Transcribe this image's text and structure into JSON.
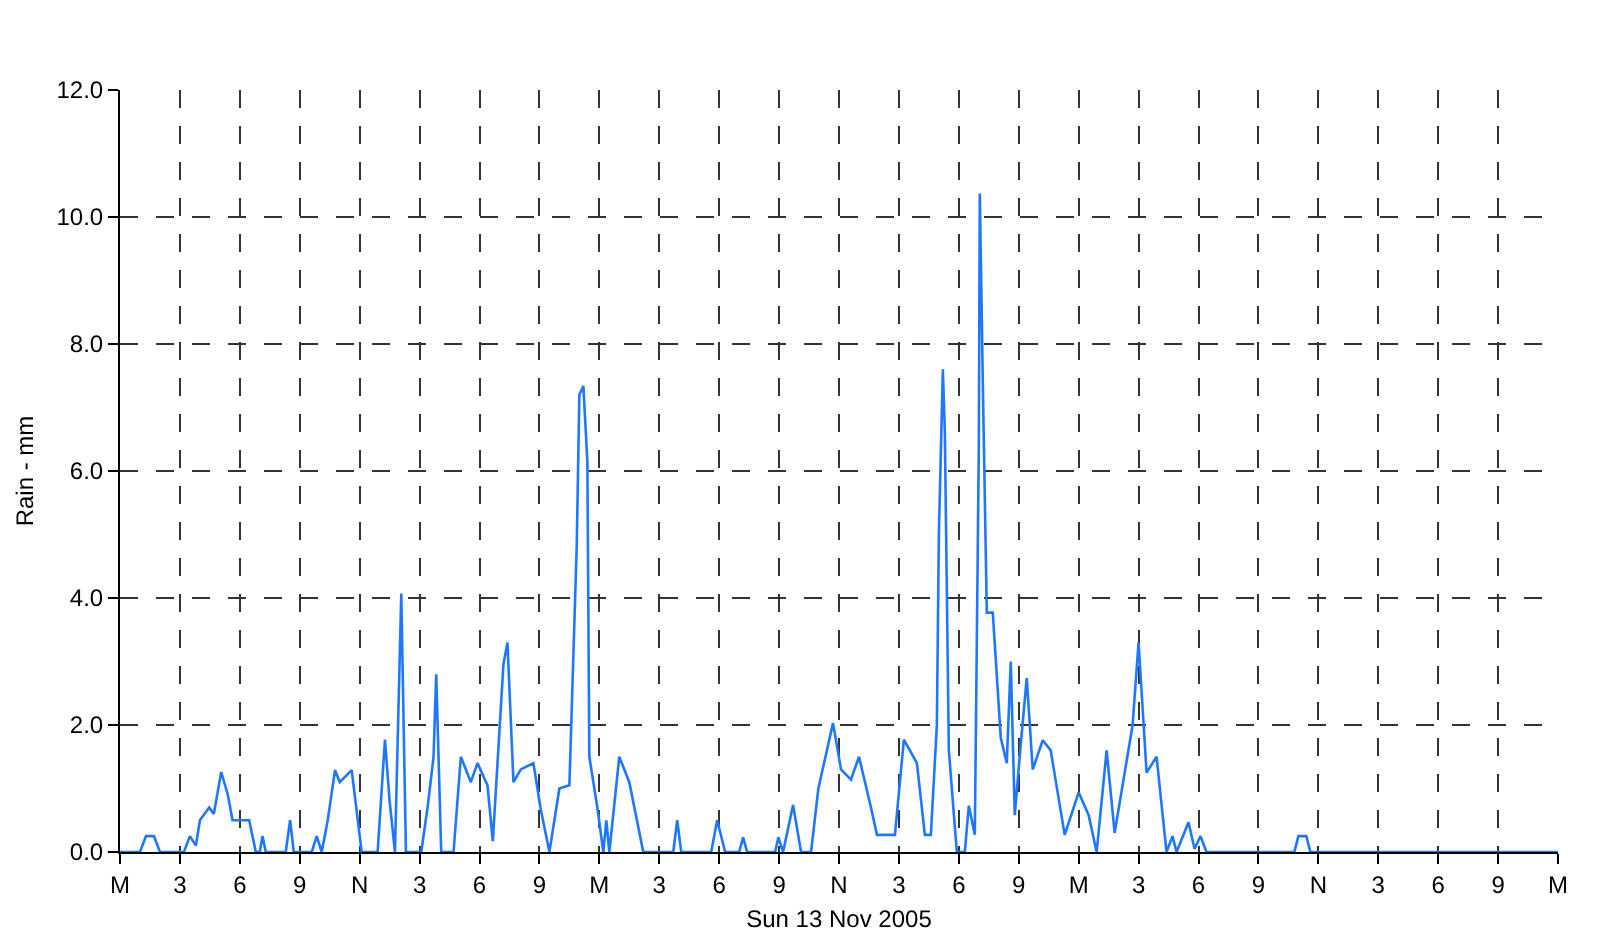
{
  "chart_data": {
    "type": "line",
    "xlabel": "Sun 13 Nov 2005",
    "ylabel": "Rain - mm",
    "x": [
      "2005-11-13T00:00",
      "2005-11-13T01:00",
      "2005-11-13T01:18",
      "2005-11-13T01:42",
      "2005-11-13T02:00",
      "2005-11-13T03:12",
      "2005-11-13T03:30",
      "2005-11-13T03:48",
      "2005-11-13T04:00",
      "2005-11-13T04:28",
      "2005-11-13T04:42",
      "2005-11-13T05:04",
      "2005-11-13T05:24",
      "2005-11-13T05:38",
      "2005-11-13T06:28",
      "2005-11-13T06:48",
      "2005-11-13T07:00",
      "2005-11-13T07:08",
      "2005-11-13T07:18",
      "2005-11-13T08:18",
      "2005-11-13T08:31",
      "2005-11-13T08:42",
      "2005-11-13T09:36",
      "2005-11-13T09:51",
      "2005-11-13T10:06",
      "2005-11-13T10:24",
      "2005-11-13T10:46",
      "2005-11-13T11:00",
      "2005-11-13T11:36",
      "2005-11-13T12:06",
      "2005-11-13T12:54",
      "2005-11-13T13:16",
      "2005-11-13T13:30",
      "2005-11-13T13:46",
      "2005-11-13T14:00",
      "2005-11-13T14:05",
      "2005-11-13T14:19",
      "2005-11-13T15:05",
      "2005-11-13T15:25",
      "2005-11-13T15:42",
      "2005-11-13T15:50",
      "2005-11-13T16:05",
      "2005-11-13T16:42",
      "2005-11-13T17:04",
      "2005-11-13T17:34",
      "2005-11-13T17:54",
      "2005-11-13T18:24",
      "2005-11-13T18:40",
      "2005-11-13T19:12",
      "2005-11-13T19:24",
      "2005-11-13T19:42",
      "2005-11-13T20:04",
      "2005-11-13T20:42",
      "2005-11-13T21:03",
      "2005-11-13T21:30",
      "2005-11-13T22:00",
      "2005-11-13T22:30",
      "2005-11-13T22:52",
      "2005-11-13T23:00",
      "2005-11-13T23:12",
      "2005-11-13T23:24",
      "2005-11-13T23:30",
      "2005-11-13T23:54",
      "2005-11-14T00:12",
      "2005-11-14T00:21",
      "2005-11-14T00:30",
      "2005-11-14T01:00",
      "2005-11-14T01:30",
      "2005-11-14T02:12",
      "2005-11-14T03:42",
      "2005-11-14T03:54",
      "2005-11-14T04:06",
      "2005-11-14T05:36",
      "2005-11-14T05:54",
      "2005-11-14T06:18",
      "2005-11-14T07:00",
      "2005-11-14T07:12",
      "2005-11-14T07:24",
      "2005-11-14T08:48",
      "2005-11-14T08:58",
      "2005-11-14T09:12",
      "2005-11-14T09:42",
      "2005-11-14T10:06",
      "2005-11-14T10:36",
      "2005-11-14T10:58",
      "2005-11-14T11:42",
      "2005-11-14T12:06",
      "2005-11-14T12:36",
      "2005-11-14T13:00",
      "2005-11-14T13:36",
      "2005-11-14T13:54",
      "2005-11-14T14:48",
      "2005-11-14T15:15",
      "2005-11-14T15:54",
      "2005-11-14T16:18",
      "2005-11-14T16:36",
      "2005-11-14T16:54",
      "2005-11-14T17:00",
      "2005-11-14T17:12",
      "2005-11-14T17:18",
      "2005-11-14T17:30",
      "2005-11-14T17:54",
      "2005-11-14T18:18",
      "2005-11-14T18:30",
      "2005-11-14T18:48",
      "2005-11-14T19:00",
      "2005-11-14T19:03",
      "2005-11-14T19:12",
      "2005-11-14T19:24",
      "2005-11-14T19:42",
      "2005-11-14T20:06",
      "2005-11-14T20:24",
      "2005-11-14T20:36",
      "2005-11-14T20:48",
      "2005-11-14T21:06",
      "2005-11-14T21:24",
      "2005-11-14T21:42",
      "2005-11-14T22:12",
      "2005-11-14T22:36",
      "2005-11-14T23:18",
      "2005-11-15T00:00",
      "2005-11-15T00:30",
      "2005-11-15T00:54",
      "2005-11-15T01:24",
      "2005-11-15T01:48",
      "2005-11-15T02:42",
      "2005-11-15T03:00",
      "2005-11-15T03:24",
      "2005-11-15T03:54",
      "2005-11-15T04:24",
      "2005-11-15T04:42",
      "2005-11-15T04:54",
      "2005-11-15T05:30",
      "2005-11-15T05:48",
      "2005-11-15T06:06",
      "2005-11-15T06:24",
      "2005-11-15T10:48",
      "2005-11-15T11:00",
      "2005-11-15T11:24",
      "2005-11-15T11:36",
      "2005-11-16T00:00"
    ],
    "series": [
      {
        "color": "#1e78ff",
        "values": [
          0,
          0,
          0.25,
          0.25,
          0,
          0,
          0.25,
          0.1,
          0.5,
          0.7,
          0.6,
          1.26,
          0.9,
          0.5,
          0.5,
          0,
          0,
          0.25,
          0,
          0,
          0.5,
          0,
          0,
          0.25,
          0,
          0.5,
          1.29,
          1.1,
          1.29,
          0,
          0,
          1.77,
          0.8,
          0,
          3.0,
          4.07,
          0,
          0,
          0.74,
          1.5,
          2.8,
          0,
          0,
          1.5,
          1.1,
          1.4,
          1.05,
          0.17,
          2.96,
          3.3,
          1.1,
          1.3,
          1.4,
          0.7,
          0,
          1.0,
          1.05,
          4.8,
          7.2,
          7.34,
          6.15,
          1.5,
          0.7,
          0,
          0.5,
          0,
          1.5,
          1.1,
          0,
          0,
          0.5,
          0,
          0,
          0.5,
          0,
          0,
          0.23,
          0,
          0,
          0.23,
          0,
          0.74,
          0,
          0,
          1.0,
          2.03,
          1.3,
          1.14,
          1.5,
          0.7,
          0.27,
          0.27,
          1.77,
          1.4,
          0.27,
          0.27,
          2.0,
          5.0,
          7.6,
          6.6,
          1.6,
          0,
          0,
          0.73,
          0.27,
          6.35,
          10.37,
          7.4,
          3.77,
          3.77,
          1.8,
          1.4,
          3.0,
          0.58,
          1.7,
          2.74,
          1.3,
          1.76,
          1.6,
          0.27,
          0.94,
          0.58,
          0,
          1.6,
          0.3,
          2.0,
          3.3,
          1.25,
          1.5,
          0,
          0.25,
          0,
          0.47,
          0.05,
          0.25,
          0,
          0,
          0.25,
          0.25,
          0,
          0
        ]
      }
    ],
    "xlim": [
      "2005-11-13T00:00",
      "2005-11-16T00:00"
    ],
    "xticks": [
      {
        "value": "2005-11-13T00:00",
        "label": "M"
      },
      {
        "value": "2005-11-13T03:00",
        "label": "3"
      },
      {
        "value": "2005-11-13T06:00",
        "label": "6"
      },
      {
        "value": "2005-11-13T09:00",
        "label": "9"
      },
      {
        "value": "2005-11-13T12:00",
        "label": "N"
      },
      {
        "value": "2005-11-13T15:00",
        "label": "3"
      },
      {
        "value": "2005-11-13T18:00",
        "label": "6"
      },
      {
        "value": "2005-11-13T21:00",
        "label": "9"
      },
      {
        "value": "2005-11-14T00:00",
        "label": "M"
      },
      {
        "value": "2005-11-14T03:00",
        "label": "3"
      },
      {
        "value": "2005-11-14T06:00",
        "label": "6"
      },
      {
        "value": "2005-11-14T09:00",
        "label": "9"
      },
      {
        "value": "2005-11-14T12:00",
        "label": "N"
      },
      {
        "value": "2005-11-14T15:00",
        "label": "3"
      },
      {
        "value": "2005-11-14T18:00",
        "label": "6"
      },
      {
        "value": "2005-11-14T21:00",
        "label": "9"
      },
      {
        "value": "2005-11-15T00:00",
        "label": "M"
      },
      {
        "value": "2005-11-15T03:00",
        "label": "3"
      },
      {
        "value": "2005-11-15T06:00",
        "label": "6"
      },
      {
        "value": "2005-11-15T09:00",
        "label": "9"
      },
      {
        "value": "2005-11-15T12:00",
        "label": "N"
      },
      {
        "value": "2005-11-15T15:00",
        "label": "3"
      },
      {
        "value": "2005-11-15T18:00",
        "label": "6"
      },
      {
        "value": "2005-11-15T21:00",
        "label": "9"
      },
      {
        "value": "2005-11-16T00:00",
        "label": "M"
      }
    ],
    "ylim": [
      0,
      12
    ],
    "yticks": [
      {
        "value": 0,
        "label": "0.0"
      },
      {
        "value": 2,
        "label": "2.0"
      },
      {
        "value": 4,
        "label": "4.0"
      },
      {
        "value": 6,
        "label": "6.0"
      },
      {
        "value": 8,
        "label": "8.0"
      },
      {
        "value": 10,
        "label": "10.0"
      },
      {
        "value": 12,
        "label": "12.0"
      }
    ],
    "grid": true
  }
}
